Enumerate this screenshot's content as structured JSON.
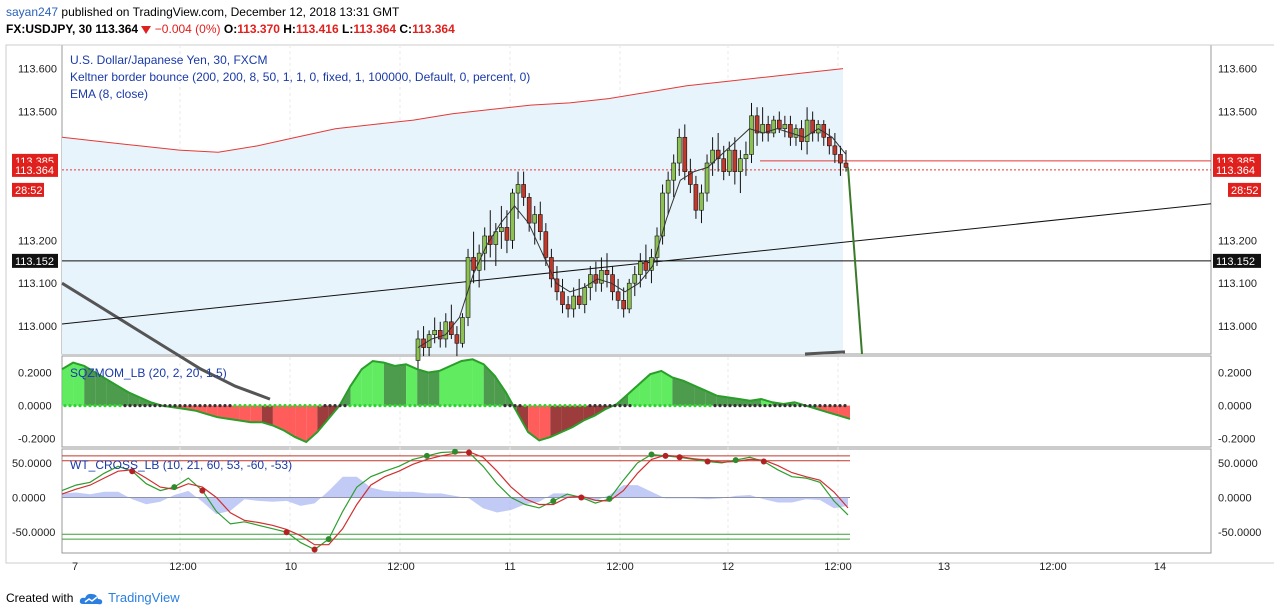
{
  "header": {
    "user": "sayan247",
    "published_text": "published on TradingView.com, December 12, 2018 13:31 GMT",
    "symbol": "FX:USDJPY, 30",
    "last": "113.364",
    "change": "−0.004 (0%)",
    "o_label": "O:",
    "o_val": "113.370",
    "h_label": "H:",
    "h_val": "113.416",
    "l_label": "L:",
    "l_val": "113.364",
    "c_label": "C:",
    "c_val": "113.364"
  },
  "legend": {
    "main_title": "U.S. Dollar/Japanese Yen, 30, FXCM",
    "indicator1": "Keltner border bounce (200, 200, 8, 50, 1, 1, 0, fixed, 1, 100000, Default, 0, percent, 0)",
    "indicator2": "EMA (8, close)",
    "pane2": "SQZMOM_LB (20, 2, 20, 1.5)",
    "pane3": "WT_CROSS_LB (10, 21, 60, 53, -60, -53)"
  },
  "footer": {
    "prefix": "Created with",
    "brand": "TradingView"
  },
  "colors": {
    "up": "#8cc152",
    "down": "#c0392b",
    "keltner": "#e53935",
    "fill": "#e8f4fb",
    "ema": "#333333",
    "badge_red": "#e0201d",
    "badge_black": "#111111"
  },
  "chart_data": [
    {
      "type": "candlestick",
      "symbol": "FX:USDJPY",
      "timeframe": "30",
      "y_ticks": [
        "113.600",
        "113.500",
        "113.200",
        "113.100",
        "113.000"
      ],
      "y_range": [
        112.935,
        113.655
      ],
      "x_ticks": [
        "7",
        "12:00",
        "10",
        "12:00",
        "11",
        "12:00",
        "12",
        "12:00",
        "13",
        "12:00",
        "14"
      ],
      "price_labels": {
        "line1": "113.385",
        "line2": "113.364",
        "countdown": "28:52",
        "hline": "113.152"
      },
      "candles": [
        [
          112.92,
          112.99,
          112.9,
          112.97
        ],
        [
          112.97,
          113.0,
          112.93,
          112.95
        ],
        [
          112.95,
          112.99,
          112.93,
          112.98
        ],
        [
          112.98,
          113.02,
          112.96,
          112.99
        ],
        [
          112.99,
          113.01,
          112.95,
          112.97
        ],
        [
          112.97,
          113.03,
          112.95,
          113.01
        ],
        [
          113.01,
          113.05,
          112.97,
          112.98
        ],
        [
          112.98,
          113.0,
          112.93,
          112.96
        ],
        [
          112.96,
          113.03,
          112.95,
          113.02
        ],
        [
          113.02,
          113.18,
          113.0,
          113.16
        ],
        [
          113.16,
          113.22,
          113.1,
          113.13
        ],
        [
          113.13,
          113.19,
          113.09,
          113.17
        ],
        [
          113.17,
          113.23,
          113.13,
          113.21
        ],
        [
          113.21,
          113.27,
          113.16,
          113.19
        ],
        [
          113.19,
          113.24,
          113.14,
          113.22
        ],
        [
          113.22,
          113.28,
          113.18,
          113.23
        ],
        [
          113.23,
          113.27,
          113.17,
          113.2
        ],
        [
          113.2,
          113.32,
          113.18,
          113.31
        ],
        [
          113.31,
          113.36,
          113.25,
          113.33
        ],
        [
          113.33,
          113.36,
          113.28,
          113.3
        ],
        [
          113.3,
          113.31,
          113.22,
          113.24
        ],
        [
          113.24,
          113.28,
          113.19,
          113.26
        ],
        [
          113.26,
          113.29,
          113.2,
          113.22
        ],
        [
          113.22,
          113.24,
          113.14,
          113.16
        ],
        [
          113.16,
          113.18,
          113.09,
          113.11
        ],
        [
          113.11,
          113.14,
          113.06,
          113.08
        ],
        [
          113.08,
          113.11,
          113.03,
          113.05
        ],
        [
          113.05,
          113.07,
          113.02,
          113.04
        ],
        [
          113.04,
          113.09,
          113.02,
          113.07
        ],
        [
          113.07,
          113.11,
          113.04,
          113.05
        ],
        [
          113.05,
          113.1,
          113.03,
          113.09
        ],
        [
          113.09,
          113.14,
          113.06,
          113.12
        ],
        [
          113.12,
          113.15,
          113.08,
          113.1
        ],
        [
          113.1,
          113.16,
          113.08,
          113.13
        ],
        [
          113.13,
          113.17,
          113.09,
          113.12
        ],
        [
          113.12,
          113.14,
          113.06,
          113.08
        ],
        [
          113.08,
          113.11,
          113.04,
          113.06
        ],
        [
          113.06,
          113.09,
          113.02,
          113.04
        ],
        [
          113.04,
          113.11,
          113.03,
          113.1
        ],
        [
          113.1,
          113.14,
          113.07,
          113.12
        ],
        [
          113.12,
          113.17,
          113.09,
          113.15
        ],
        [
          113.15,
          113.19,
          113.11,
          113.13
        ],
        [
          113.13,
          113.18,
          113.1,
          113.16
        ],
        [
          113.16,
          113.23,
          113.14,
          113.21
        ],
        [
          113.21,
          113.33,
          113.19,
          113.31
        ],
        [
          113.31,
          113.36,
          113.26,
          113.34
        ],
        [
          113.34,
          113.4,
          113.3,
          113.38
        ],
        [
          113.38,
          113.46,
          113.35,
          113.44
        ],
        [
          113.44,
          113.47,
          113.34,
          113.36
        ],
        [
          113.36,
          113.39,
          113.31,
          113.33
        ],
        [
          113.33,
          113.35,
          113.25,
          113.27
        ],
        [
          113.27,
          113.33,
          113.24,
          113.31
        ],
        [
          113.31,
          113.4,
          113.29,
          113.38
        ],
        [
          113.38,
          113.44,
          113.35,
          113.41
        ],
        [
          113.41,
          113.45,
          113.36,
          113.39
        ],
        [
          113.39,
          113.42,
          113.34,
          113.36
        ],
        [
          113.36,
          113.43,
          113.35,
          113.41
        ],
        [
          113.41,
          113.44,
          113.33,
          113.36
        ],
        [
          113.36,
          113.41,
          113.31,
          113.39
        ],
        [
          113.39,
          113.43,
          113.35,
          113.4
        ],
        [
          113.4,
          113.52,
          113.38,
          113.49
        ],
        [
          113.49,
          113.51,
          113.42,
          113.45
        ],
        [
          113.45,
          113.51,
          113.43,
          113.47
        ],
        [
          113.47,
          113.49,
          113.43,
          113.45
        ],
        [
          113.45,
          113.49,
          113.44,
          113.48
        ],
        [
          113.48,
          113.5,
          113.45,
          113.46
        ],
        [
          113.46,
          113.49,
          113.44,
          113.47
        ],
        [
          113.47,
          113.49,
          113.42,
          113.44
        ],
        [
          113.44,
          113.47,
          113.42,
          113.46
        ],
        [
          113.46,
          113.48,
          113.41,
          113.43
        ],
        [
          113.43,
          113.51,
          113.4,
          113.48
        ],
        [
          113.48,
          113.5,
          113.43,
          113.45
        ],
        [
          113.45,
          113.48,
          113.43,
          113.47
        ],
        [
          113.47,
          113.48,
          113.42,
          113.44
        ],
        [
          113.44,
          113.46,
          113.4,
          113.42
        ],
        [
          113.42,
          113.45,
          113.38,
          113.4
        ],
        [
          113.4,
          113.42,
          113.35,
          113.38
        ],
        [
          113.38,
          113.41,
          113.36,
          113.37
        ]
      ],
      "keltner_upper": [
        113.44,
        113.43,
        113.42,
        113.41,
        113.405,
        113.42,
        113.44,
        113.46,
        113.47,
        113.48,
        113.495,
        113.505,
        113.515,
        113.52,
        113.53,
        113.545,
        113.56,
        113.57,
        113.58,
        113.59,
        113.6
      ],
      "ema": [
        112.95,
        112.97,
        112.98,
        113.02,
        113.12,
        113.19,
        113.24,
        113.28,
        113.24,
        113.17,
        113.1,
        113.08,
        113.09,
        113.11,
        113.1,
        113.08,
        113.1,
        113.14,
        113.25,
        113.34,
        113.36,
        113.37,
        113.4,
        113.43,
        113.46,
        113.45,
        113.46,
        113.45,
        113.44,
        113.46,
        113.44,
        113.4
      ],
      "trendline": {
        "start": 113.005,
        "end": 113.285
      },
      "hline_black": 113.152,
      "hline_red": 113.385,
      "dark_band": [
        113.1,
        113.05,
        113.0,
        112.95,
        112.9,
        112.86,
        112.83
      ]
    },
    {
      "type": "area",
      "name": "SQZMOM_LB",
      "y_ticks": [
        "0.2000",
        "0.0000",
        "-0.2000"
      ],
      "y_range": [
        -0.25,
        0.3
      ],
      "values": [
        0.22,
        0.26,
        0.24,
        0.2,
        0.16,
        0.12,
        0.08,
        0.05,
        0.02,
        0.0,
        -0.01,
        -0.02,
        -0.03,
        -0.05,
        -0.07,
        -0.08,
        -0.09,
        -0.1,
        -0.1,
        -0.12,
        -0.15,
        -0.19,
        -0.22,
        -0.16,
        -0.08,
        0.0,
        0.12,
        0.22,
        0.27,
        0.26,
        0.24,
        0.25,
        0.22,
        0.2,
        0.21,
        0.24,
        0.27,
        0.28,
        0.25,
        0.18,
        0.08,
        -0.04,
        -0.16,
        -0.21,
        -0.19,
        -0.16,
        -0.13,
        -0.09,
        -0.06,
        -0.02,
        0.01,
        0.07,
        0.13,
        0.19,
        0.21,
        0.17,
        0.15,
        0.12,
        0.09,
        0.06,
        0.05,
        0.04,
        0.03,
        0.04,
        0.02,
        0.01,
        0.02,
        0.0,
        -0.02,
        -0.04,
        -0.06,
        -0.08
      ]
    },
    {
      "type": "line",
      "name": "WT_CROSS_LB",
      "y_ticks": [
        "50.0000",
        "0.0000",
        "-50.0000"
      ],
      "y_range": [
        -80,
        70
      ],
      "wt1": [
        10,
        18,
        22,
        35,
        45,
        38,
        20,
        10,
        15,
        28,
        10,
        -20,
        -38,
        -35,
        -40,
        -45,
        -50,
        -65,
        -75,
        -60,
        -20,
        15,
        30,
        38,
        45,
        55,
        60,
        65,
        66,
        65,
        45,
        20,
        0,
        -10,
        -15,
        -5,
        5,
        0,
        -8,
        -2,
        25,
        50,
        62,
        60,
        58,
        55,
        52,
        50,
        54,
        58,
        52,
        40,
        30,
        28,
        22,
        -5,
        -25
      ],
      "wt2": [
        5,
        12,
        18,
        28,
        38,
        40,
        28,
        15,
        12,
        20,
        15,
        0,
        -22,
        -33,
        -36,
        -40,
        -46,
        -55,
        -68,
        -68,
        -45,
        -10,
        18,
        30,
        38,
        48,
        55,
        60,
        64,
        66,
        58,
        38,
        15,
        -2,
        -10,
        -10,
        0,
        2,
        -4,
        -5,
        10,
        35,
        55,
        61,
        59,
        56,
        54,
        51,
        52,
        55,
        54,
        46,
        36,
        30,
        25,
        8,
        -15
      ],
      "ob": [
        60,
        53
      ],
      "os": [
        -60,
        -53
      ]
    }
  ]
}
